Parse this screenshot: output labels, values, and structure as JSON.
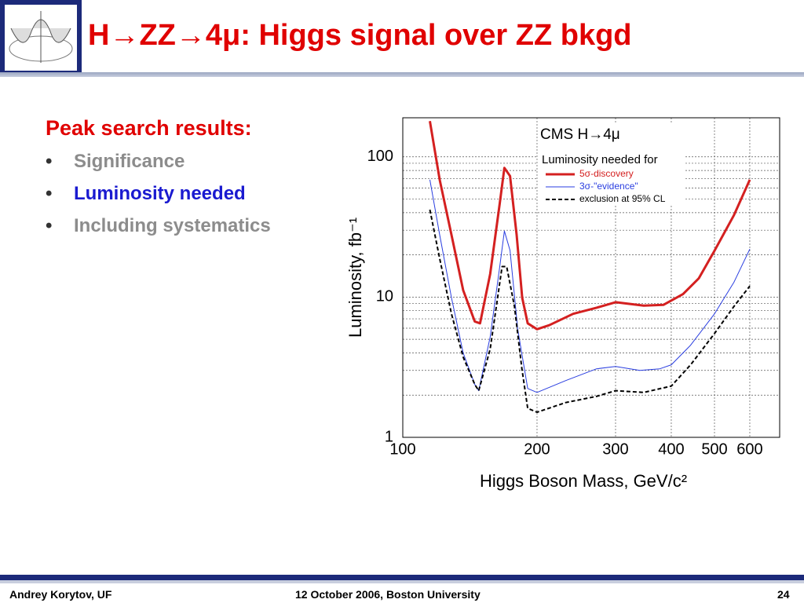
{
  "slide": {
    "title": "H→ZZ→4μ: Higgs signal over ZZ bkgd",
    "heading": "Peak search results:",
    "bullets": [
      "Significance",
      "Luminosity needed",
      "Including systematics"
    ],
    "footer": {
      "author": "Andrey Korytov, UF",
      "event": "12 October 2006, Boston University",
      "page": "24"
    }
  },
  "chart_data": {
    "type": "line",
    "annotation": "CMS H→4μ",
    "legend_title": "Luminosity needed for",
    "xlabel": "Higgs Boson Mass, GeV/c²",
    "ylabel": "Luminosity, fb⁻¹",
    "xlog": true,
    "ylog": true,
    "grid": true,
    "xlim": [
      100,
      700
    ],
    "ylim": [
      1,
      190
    ],
    "xticks": [
      100,
      200,
      300,
      400,
      500,
      600
    ],
    "yticks": [
      1,
      10,
      100
    ],
    "minor_yticks": [
      2,
      3,
      4,
      5,
      6,
      7,
      8,
      9,
      20,
      30,
      40,
      50,
      60,
      70,
      80,
      90
    ],
    "series": [
      {
        "name": "5σ-discovery",
        "color": "#d42020",
        "dash": false,
        "width": 3,
        "x": [
          115,
          121,
          128.6,
          136.6,
          145,
          149,
          157,
          165,
          169,
          174,
          180,
          185.3,
          190.6,
          200,
          213,
          241,
          272,
          300,
          347,
          384,
          425,
          461,
          500,
          553,
          600
        ],
        "values": [
          180,
          68.7,
          27.8,
          11.2,
          6.7,
          6.5,
          14.6,
          46.6,
          83.5,
          73,
          27.8,
          9.9,
          6.5,
          5.9,
          6.3,
          7.6,
          8.4,
          9.2,
          8.7,
          8.8,
          10.5,
          13.6,
          21.4,
          38.5,
          68.7
        ]
      },
      {
        "name": "3σ-\"evidence\"",
        "color": "#2a3ee0",
        "dash": false,
        "width": 1,
        "x": [
          115,
          121,
          128.6,
          136.6,
          145,
          148,
          157,
          165,
          169,
          174,
          181,
          190.6,
          200,
          232,
          272,
          300,
          340,
          377,
          400,
          442,
          500,
          553,
          600
        ],
        "values": [
          68.7,
          27.8,
          9.9,
          4.0,
          2.38,
          2.15,
          5.2,
          16.5,
          29.6,
          21.5,
          5.9,
          2.23,
          2.09,
          2.54,
          3.08,
          3.2,
          3.0,
          3.08,
          3.29,
          4.54,
          7.6,
          12.8,
          22.0
        ]
      },
      {
        "name": "exclusion at 95% CL",
        "color": "#000000",
        "dash": true,
        "width": 2,
        "x": [
          115,
          121,
          128.6,
          136.6,
          145,
          148,
          157,
          167,
          171,
          178,
          185,
          190.6,
          200,
          232,
          272,
          300,
          347,
          400,
          442,
          500,
          553,
          600
        ],
        "values": [
          42,
          18.8,
          7.6,
          3.74,
          2.38,
          2.15,
          4.26,
          16.5,
          16.5,
          8.6,
          3.08,
          1.61,
          1.51,
          1.77,
          1.96,
          2.15,
          2.09,
          2.32,
          3.29,
          5.5,
          8.6,
          12.0
        ]
      }
    ]
  }
}
